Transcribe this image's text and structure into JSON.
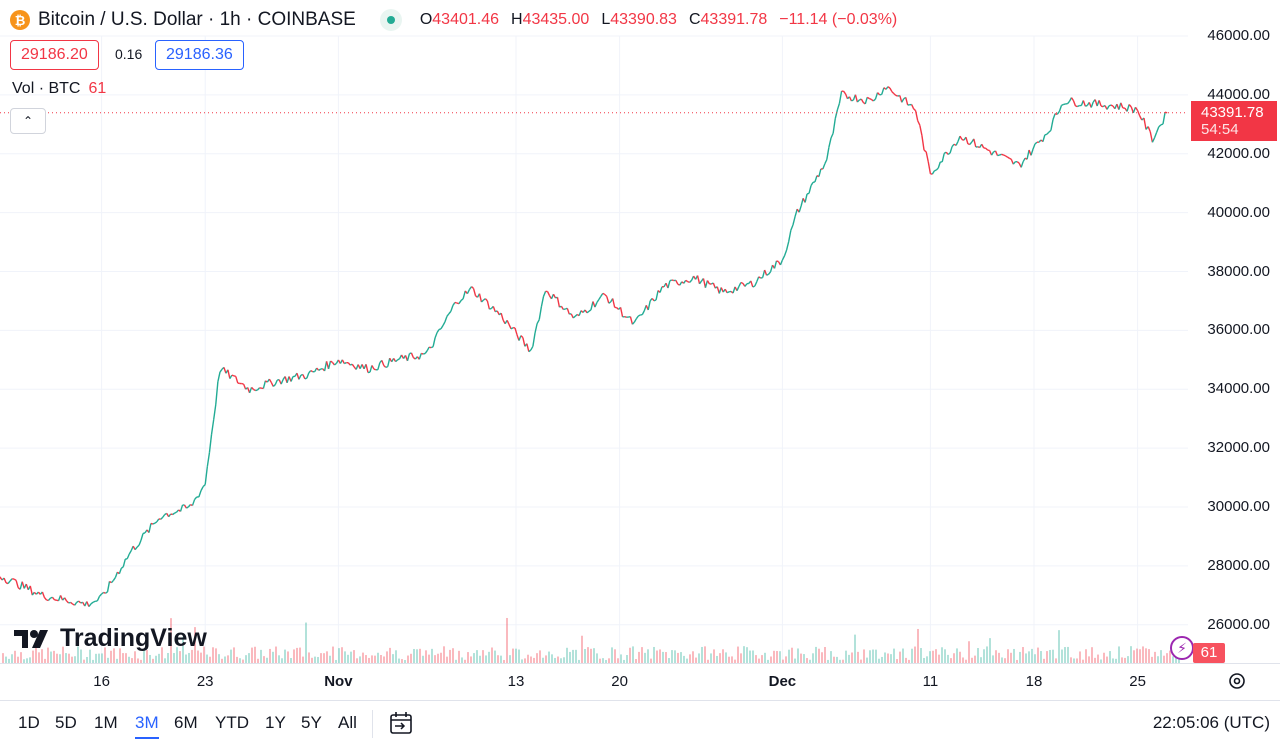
{
  "header": {
    "symbol_title": "Bitcoin / U.S. Dollar · 1h · COINBASE",
    "coin_icon": "bitcoin-icon",
    "ohlc": [
      {
        "key": "O",
        "value": "43401.46"
      },
      {
        "key": "H",
        "value": "43435.00"
      },
      {
        "key": "L",
        "value": "43390.83"
      },
      {
        "key": "C",
        "value": "43391.78"
      }
    ],
    "change": "−11.14 (−0.03%)"
  },
  "trade": {
    "sell_price": "29186.20",
    "spread": "0.16",
    "buy_price": "29186.36"
  },
  "volume_indicator": {
    "label": "Vol · BTC",
    "value": "61"
  },
  "price_axis": {
    "labels": [
      "46000.00",
      "44000.00",
      "42000.00",
      "40000.00",
      "38000.00",
      "36000.00",
      "34000.00",
      "32000.00",
      "30000.00",
      "28000.00",
      "26000.00"
    ],
    "last_price": "43391.78",
    "countdown": "54:54",
    "volume_tag": "61"
  },
  "time_axis": {
    "labels": [
      {
        "text": "16",
        "bold": false
      },
      {
        "text": "23",
        "bold": false
      },
      {
        "text": "Nov",
        "bold": true
      },
      {
        "text": "13",
        "bold": false
      },
      {
        "text": "20",
        "bold": false
      },
      {
        "text": "Dec",
        "bold": true
      },
      {
        "text": "11",
        "bold": false
      },
      {
        "text": "18",
        "bold": false
      },
      {
        "text": "25",
        "bold": false
      }
    ]
  },
  "branding": {
    "logo_text": "TradingView"
  },
  "bottom_bar": {
    "ranges": [
      "1D",
      "5D",
      "1M",
      "3M",
      "6M",
      "YTD",
      "1Y",
      "5Y",
      "All"
    ],
    "active_range": "3M",
    "clock": "22:05:06 (UTC)"
  },
  "colors": {
    "up": "#22ab94",
    "down": "#f23645",
    "accent": "#2962ff",
    "last_price_bg": "#f23645"
  },
  "chart_data": {
    "type": "line",
    "series": [
      {
        "name": "BTCUSD",
        "x": [
          "Oct 9",
          "Oct 12",
          "Oct 15",
          "Oct 16",
          "Oct 18",
          "Oct 20",
          "Oct 22",
          "Oct 23",
          "Oct 24",
          "Oct 26",
          "Oct 28",
          "Oct 30",
          "Nov 1",
          "Nov 3",
          "Nov 5",
          "Nov 7",
          "Nov 9",
          "Nov 10",
          "Nov 12",
          "Nov 14",
          "Nov 15",
          "Nov 17",
          "Nov 19",
          "Nov 21",
          "Nov 23",
          "Nov 25",
          "Nov 27",
          "Nov 29",
          "Dec 1",
          "Dec 2",
          "Dec 4",
          "Dec 5",
          "Dec 7",
          "Dec 8",
          "Dec 10",
          "Dec 11",
          "Dec 13",
          "Dec 15",
          "Dec 17",
          "Dec 19",
          "Dec 20",
          "Dec 22",
          "Dec 24",
          "Dec 25",
          "Dec 26",
          "Dec 27"
        ],
        "values": [
          27700,
          27000,
          26700,
          26900,
          28500,
          29700,
          30000,
          30800,
          34700,
          34000,
          34300,
          34500,
          35000,
          34700,
          35000,
          35200,
          37000,
          37400,
          36500,
          35300,
          37400,
          36400,
          37200,
          36200,
          37500,
          37800,
          37300,
          37600,
          38400,
          40000,
          41800,
          44000,
          43800,
          44300,
          43500,
          41300,
          42600,
          42100,
          41600,
          42800,
          43800,
          43700,
          43600,
          43500,
          42500,
          43391.78
        ]
      }
    ],
    "volume_note": "volume histogram along bottom (green/red bars)",
    "ylim": [
      25000,
      46500
    ],
    "ylabel": "",
    "xlabel": "",
    "grid": true
  }
}
